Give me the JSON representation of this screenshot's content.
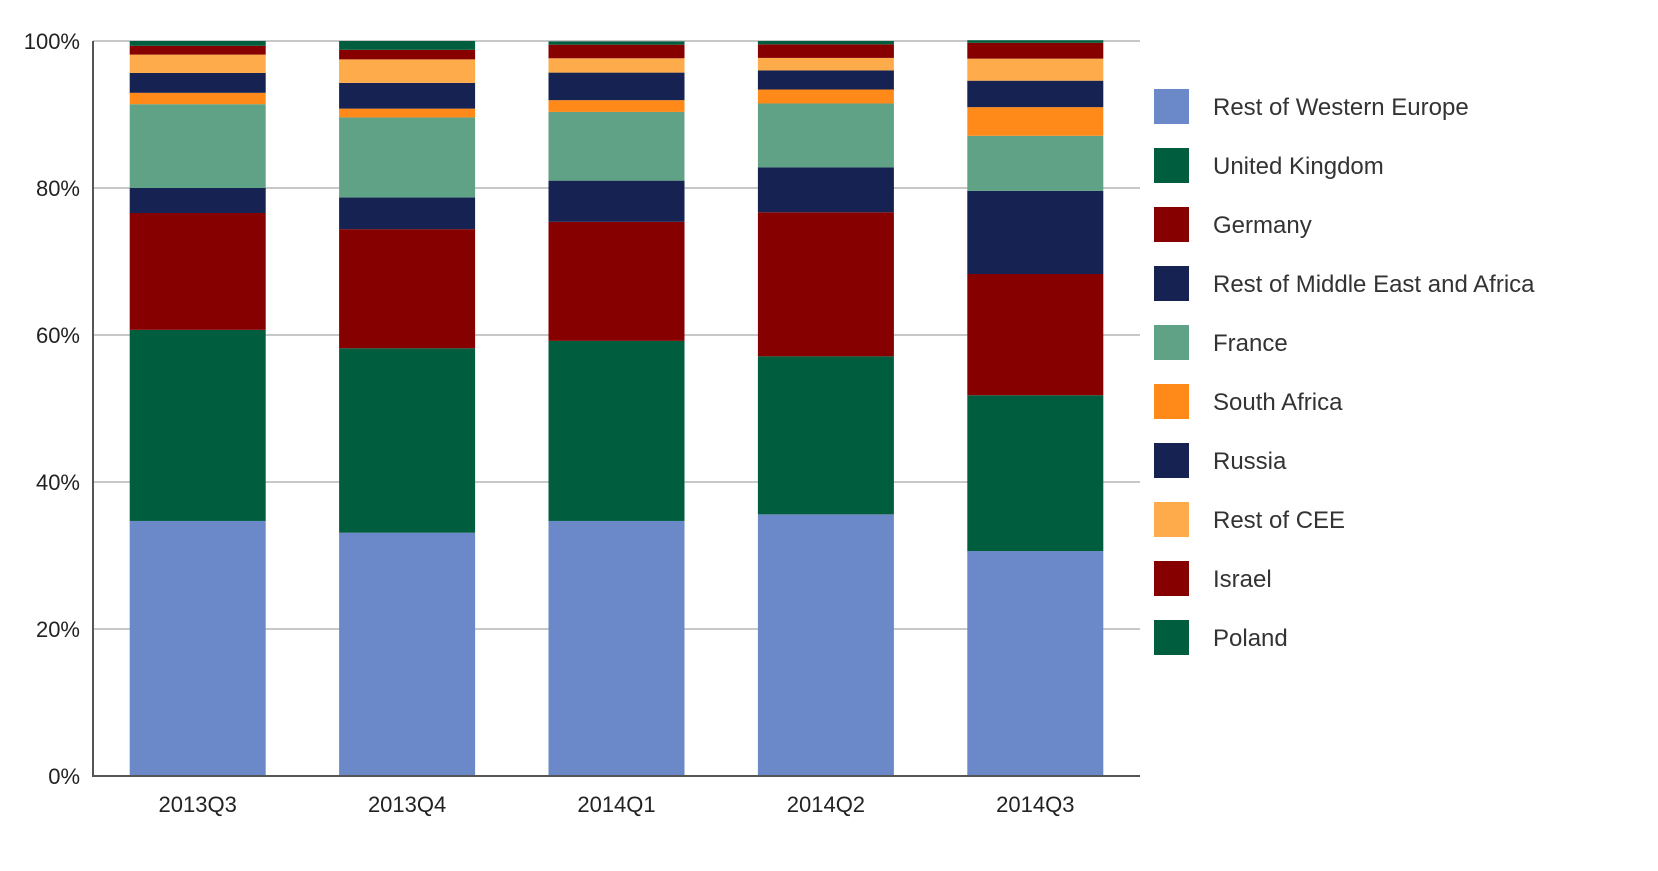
{
  "chart_data": {
    "type": "bar",
    "stacked": true,
    "percent": true,
    "title": "",
    "xlabel": "",
    "ylabel": "",
    "ylim": [
      0,
      100
    ],
    "yticks": [
      "0%",
      "20%",
      "40%",
      "60%",
      "80%",
      "100%"
    ],
    "grid": true,
    "legend_position": "right",
    "categories": [
      "2013Q3",
      "2013Q4",
      "2014Q1",
      "2014Q2",
      "2014Q3"
    ],
    "series": [
      {
        "name": "Rest of Western Europe",
        "color": "#6b88c8",
        "values": [
          34.7,
          33.1,
          34.7,
          35.6,
          30.6
        ]
      },
      {
        "name": "United Kingdom",
        "color": "#005e3e",
        "values": [
          26.0,
          25.1,
          24.5,
          21.5,
          21.2
        ]
      },
      {
        "name": "Germany",
        "color": "#870000",
        "values": [
          15.9,
          16.2,
          16.2,
          19.6,
          16.5
        ]
      },
      {
        "name": "Rest of Middle East and Africa",
        "color": "#152252",
        "values": [
          3.4,
          4.3,
          5.6,
          6.1,
          11.3
        ]
      },
      {
        "name": "France",
        "color": "#5fa285",
        "values": [
          11.4,
          10.9,
          9.35,
          8.7,
          7.5
        ]
      },
      {
        "name": "South Africa",
        "color": "#ff8a1a",
        "values": [
          1.55,
          1.2,
          1.6,
          1.9,
          3.9
        ]
      },
      {
        "name": "Russia",
        "color": "#152252",
        "values": [
          2.7,
          3.5,
          3.75,
          2.6,
          3.6
        ]
      },
      {
        "name": "Rest of CEE",
        "color": "#fdab4b",
        "values": [
          2.5,
          3.2,
          1.95,
          1.7,
          3.0
        ]
      },
      {
        "name": "Israel",
        "color": "#870000",
        "values": [
          1.2,
          1.3,
          1.85,
          1.85,
          2.15
        ]
      },
      {
        "name": "Poland",
        "color": "#005e3e",
        "values": [
          0.65,
          1.2,
          0.45,
          0.45,
          0.35
        ]
      }
    ]
  }
}
